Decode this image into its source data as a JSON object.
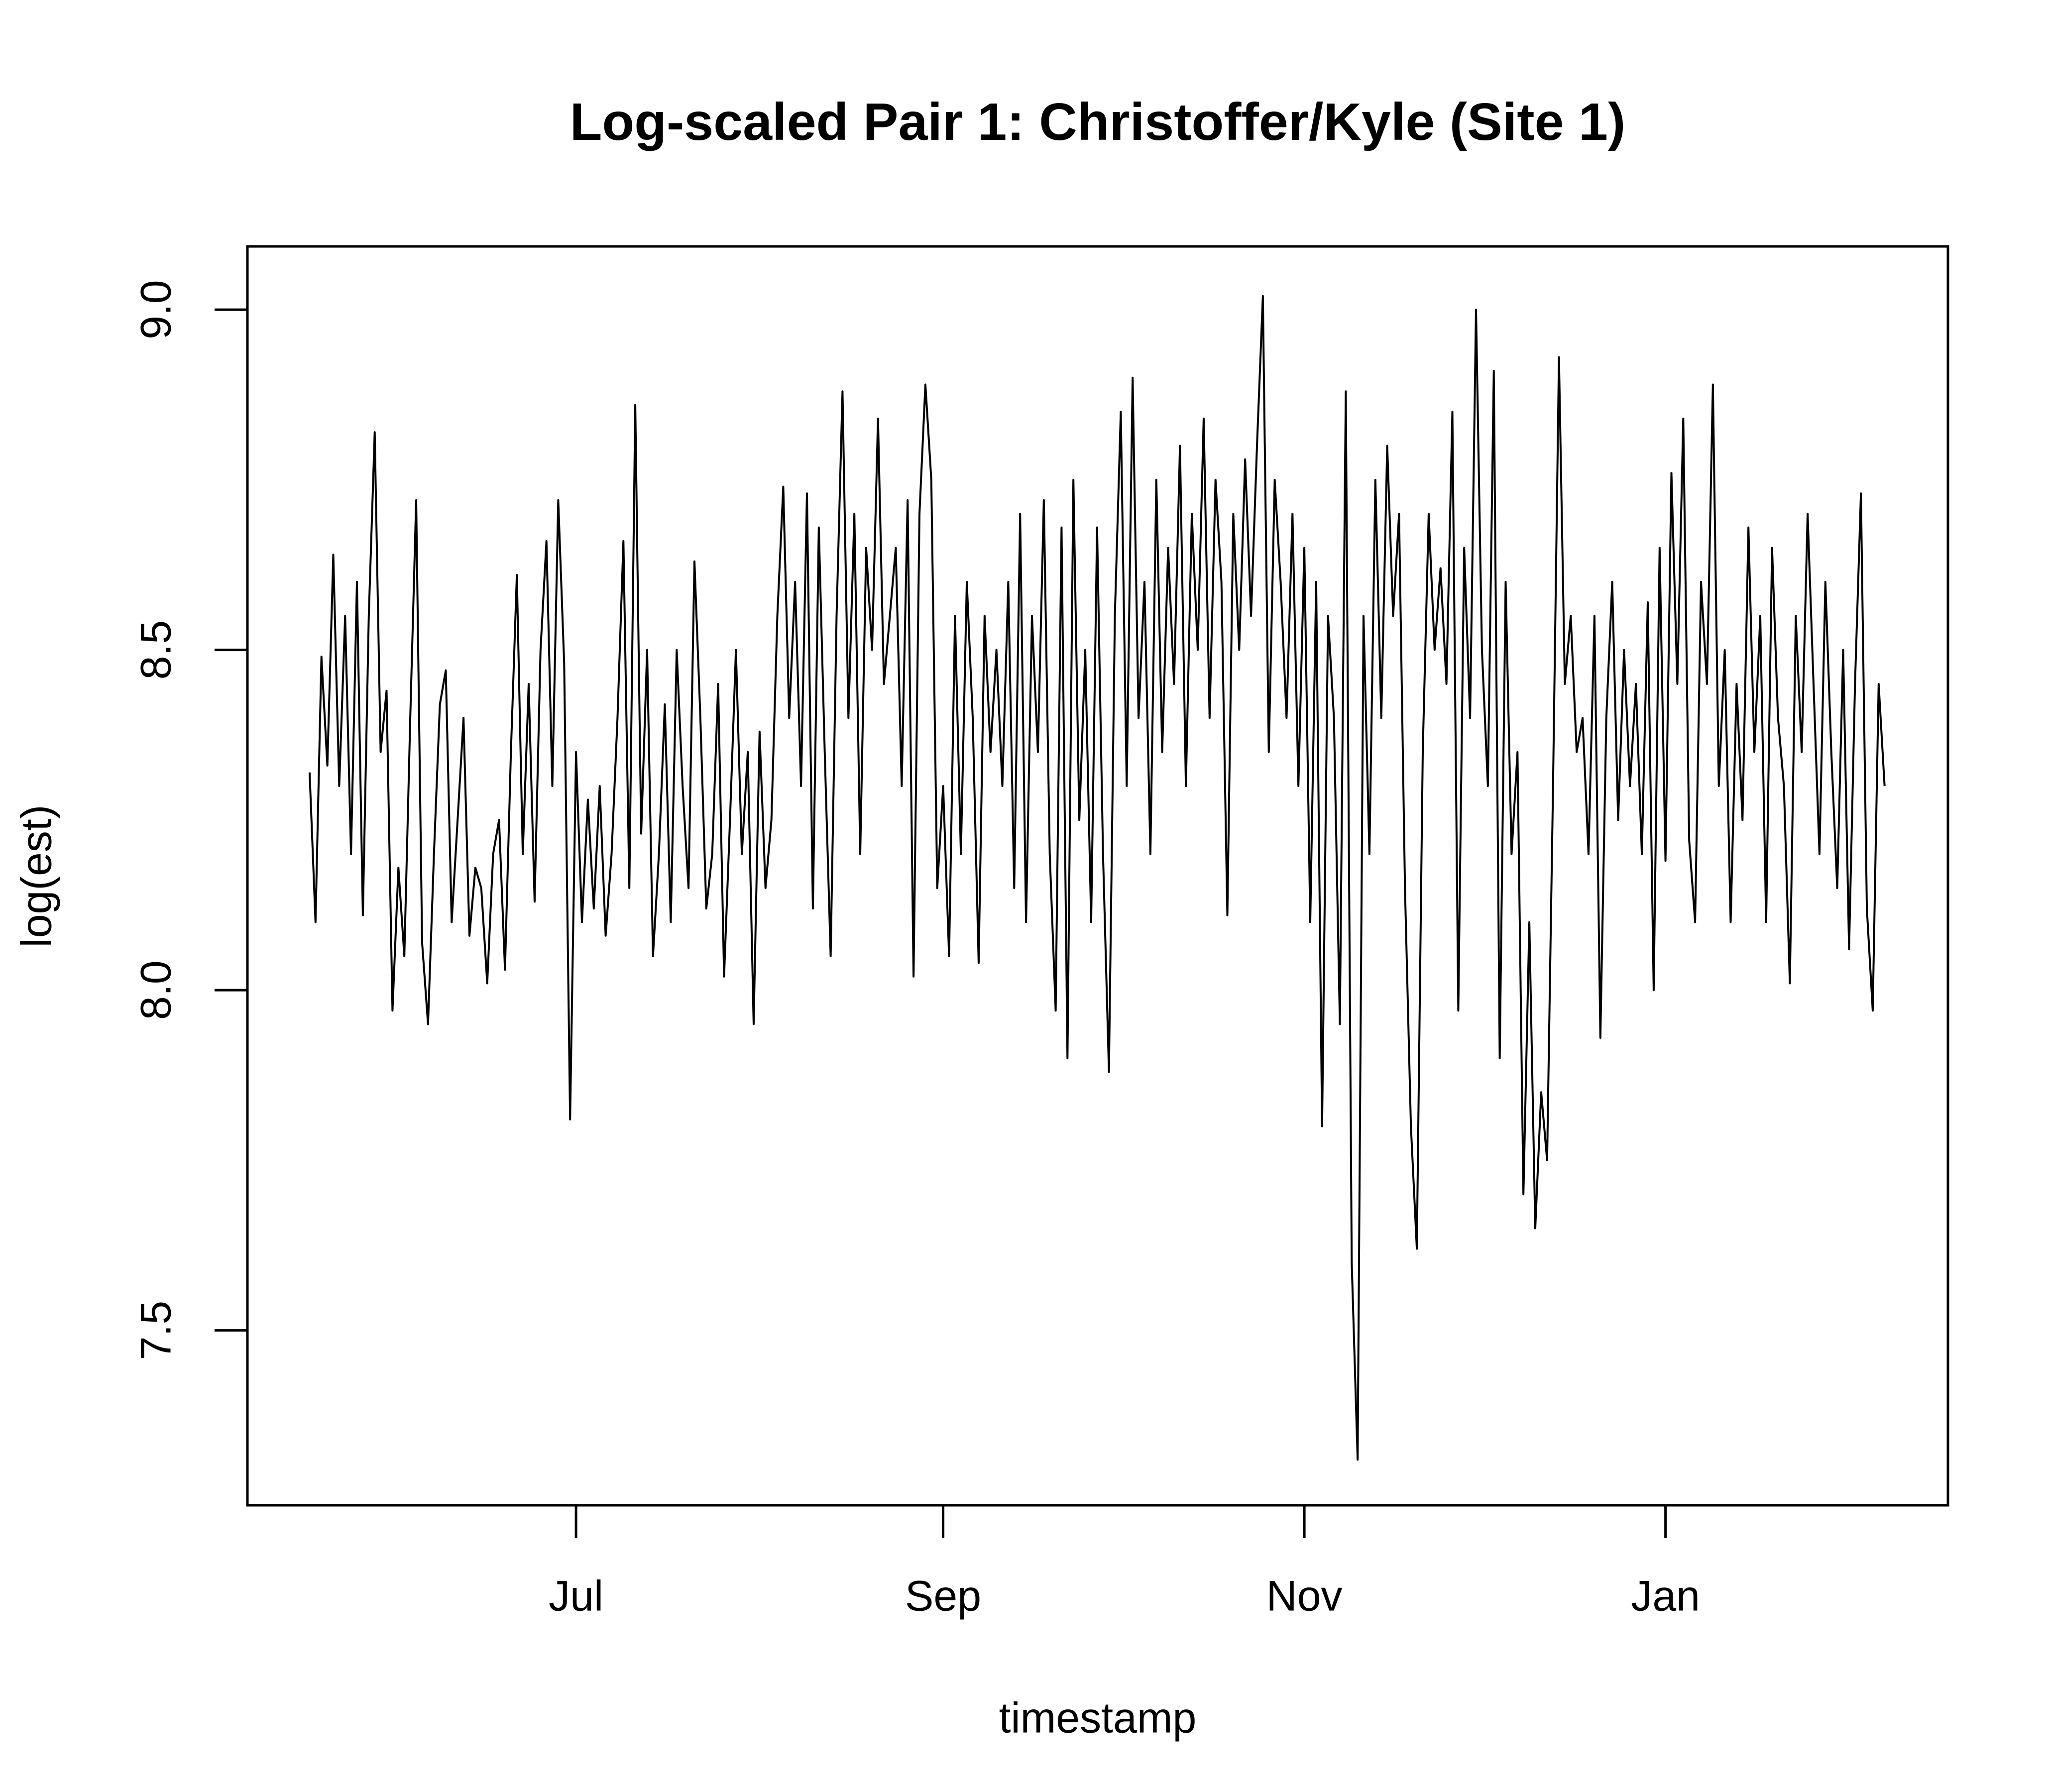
{
  "chart_data": {
    "type": "line",
    "title": "Log-scaled Pair 1: Christoffer/Kyle (Site 1)",
    "xlabel": "timestamp",
    "ylabel": "log(est)",
    "color": "#000000",
    "values": [
      8.32,
      8.1,
      8.49,
      8.33,
      8.64,
      8.3,
      8.55,
      8.2,
      8.6,
      8.11,
      8.55,
      8.82,
      8.35,
      8.44,
      7.97,
      8.18,
      8.05,
      8.4,
      8.72,
      8.07,
      7.95,
      8.2,
      8.42,
      8.47,
      8.1,
      8.25,
      8.4,
      8.08,
      8.18,
      8.15,
      8.01,
      8.2,
      8.25,
      8.03,
      8.35,
      8.61,
      8.2,
      8.45,
      8.13,
      8.5,
      8.66,
      8.3,
      8.72,
      8.48,
      7.81,
      8.35,
      8.1,
      8.28,
      8.12,
      8.3,
      8.08,
      8.2,
      8.4,
      8.66,
      8.15,
      8.86,
      8.23,
      8.5,
      8.05,
      8.2,
      8.42,
      8.1,
      8.5,
      8.3,
      8.15,
      8.63,
      8.4,
      8.12,
      8.2,
      8.45,
      8.02,
      8.25,
      8.5,
      8.2,
      8.35,
      7.95,
      8.38,
      8.15,
      8.25,
      8.55,
      8.74,
      8.4,
      8.6,
      8.3,
      8.73,
      8.12,
      8.68,
      8.35,
      8.05,
      8.55,
      8.88,
      8.4,
      8.7,
      8.2,
      8.65,
      8.5,
      8.84,
      8.45,
      8.55,
      8.65,
      8.3,
      8.72,
      8.02,
      8.7,
      8.89,
      8.75,
      8.15,
      8.3,
      8.05,
      8.55,
      8.2,
      8.6,
      8.4,
      8.04,
      8.55,
      8.35,
      8.5,
      8.3,
      8.6,
      8.15,
      8.7,
      8.1,
      8.55,
      8.35,
      8.72,
      8.2,
      7.97,
      8.68,
      7.9,
      8.75,
      8.25,
      8.5,
      8.1,
      8.68,
      8.2,
      7.88,
      8.55,
      8.85,
      8.3,
      8.9,
      8.4,
      8.6,
      8.2,
      8.75,
      8.35,
      8.65,
      8.45,
      8.8,
      8.3,
      8.7,
      8.5,
      8.84,
      8.4,
      8.75,
      8.6,
      8.11,
      8.7,
      8.5,
      8.78,
      8.55,
      8.8,
      9.02,
      8.35,
      8.75,
      8.6,
      8.4,
      8.7,
      8.3,
      8.65,
      8.1,
      8.6,
      7.8,
      8.55,
      8.4,
      7.95,
      8.88,
      7.6,
      7.31,
      8.55,
      8.2,
      8.75,
      8.4,
      8.8,
      8.55,
      8.7,
      8.15,
      7.8,
      7.62,
      8.35,
      8.7,
      8.5,
      8.62,
      8.45,
      8.85,
      7.97,
      8.65,
      8.4,
      9.0,
      8.5,
      8.3,
      8.91,
      7.9,
      8.6,
      8.2,
      8.35,
      7.7,
      8.1,
      7.65,
      7.85,
      7.75,
      8.3,
      8.93,
      8.45,
      8.55,
      8.35,
      8.4,
      8.2,
      8.55,
      7.93,
      8.4,
      8.6,
      8.25,
      8.5,
      8.3,
      8.45,
      8.2,
      8.57,
      8.0,
      8.65,
      8.19,
      8.76,
      8.45,
      8.84,
      8.22,
      8.1,
      8.6,
      8.45,
      8.89,
      8.3,
      8.5,
      8.1,
      8.45,
      8.25,
      8.68,
      8.35,
      8.55,
      8.1,
      8.65,
      8.4,
      8.3,
      8.01,
      8.55,
      8.35,
      8.7,
      8.45,
      8.2,
      8.6,
      8.35,
      8.15,
      8.5,
      8.06,
      8.45,
      8.73,
      8.12,
      7.97,
      8.45,
      8.3
    ],
    "xlim": [
      -10.5,
      276.7
    ],
    "xticks": [
      {
        "value": 45,
        "label": "Jul"
      },
      {
        "value": 107,
        "label": "Sep"
      },
      {
        "value": 168,
        "label": "Nov"
      },
      {
        "value": 229,
        "label": "Jan"
      }
    ],
    "ylim": [
      7.243,
      9.093
    ],
    "yticks": [
      7.5,
      {
        "value": 8,
        "label": "8.0"
      },
      8.5,
      {
        "value": 9,
        "label": "9.0"
      }
    ]
  }
}
